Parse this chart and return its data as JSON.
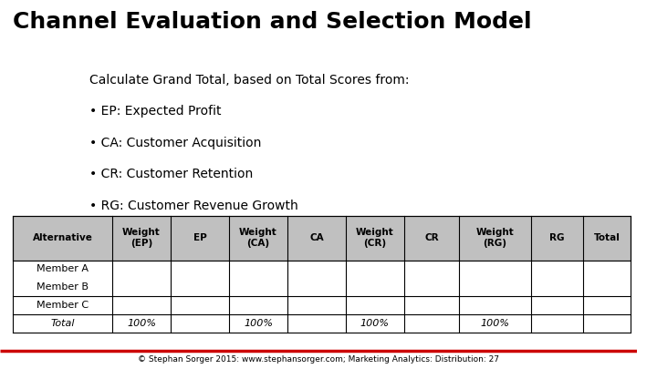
{
  "title": "Channel Evaluation and Selection Model",
  "description_lines": [
    "Calculate Grand Total, based on Total Scores from:",
    "• EP: Expected Profit",
    "• CA: Customer Acquisition",
    "• CR: Customer Retention",
    "• RG: Customer Revenue Growth"
  ],
  "table_headers": [
    "Alternative",
    "Weight\n(EP)",
    "EP",
    "Weight\n(CA)",
    "CA",
    "Weight\n(CR)",
    "CR",
    "Weight\n(RG)",
    "RG",
    "Total"
  ],
  "table_rows": [
    [
      "Member A",
      "",
      "",
      "",
      "",
      "",
      "",
      "",
      "",
      ""
    ],
    [
      "Member B",
      "",
      "",
      "",
      "",
      "",
      "",
      "",
      "",
      ""
    ],
    [
      "Member C",
      "",
      "",
      "",
      "",
      "",
      "",
      "",
      "",
      ""
    ],
    [
      "Total",
      "100%",
      "",
      "100%",
      "",
      "100%",
      "",
      "100%",
      "",
      ""
    ]
  ],
  "header_bg": "#C0C0C0",
  "row_bg_alt": "#E8E8E8",
  "row_bg_white": "#FFFFFF",
  "footer_text_left": "© Stephan Sorger 2015: ",
  "footer_url": "www.stephansorger.com",
  "footer_text_right": "; Marketing Analytics: Distribution: 27",
  "footer_line_color": "#CC0000",
  "title_fontsize": 18,
  "body_fontsize": 10,
  "table_fontsize": 8,
  "bg_color": "#FFFFFF"
}
